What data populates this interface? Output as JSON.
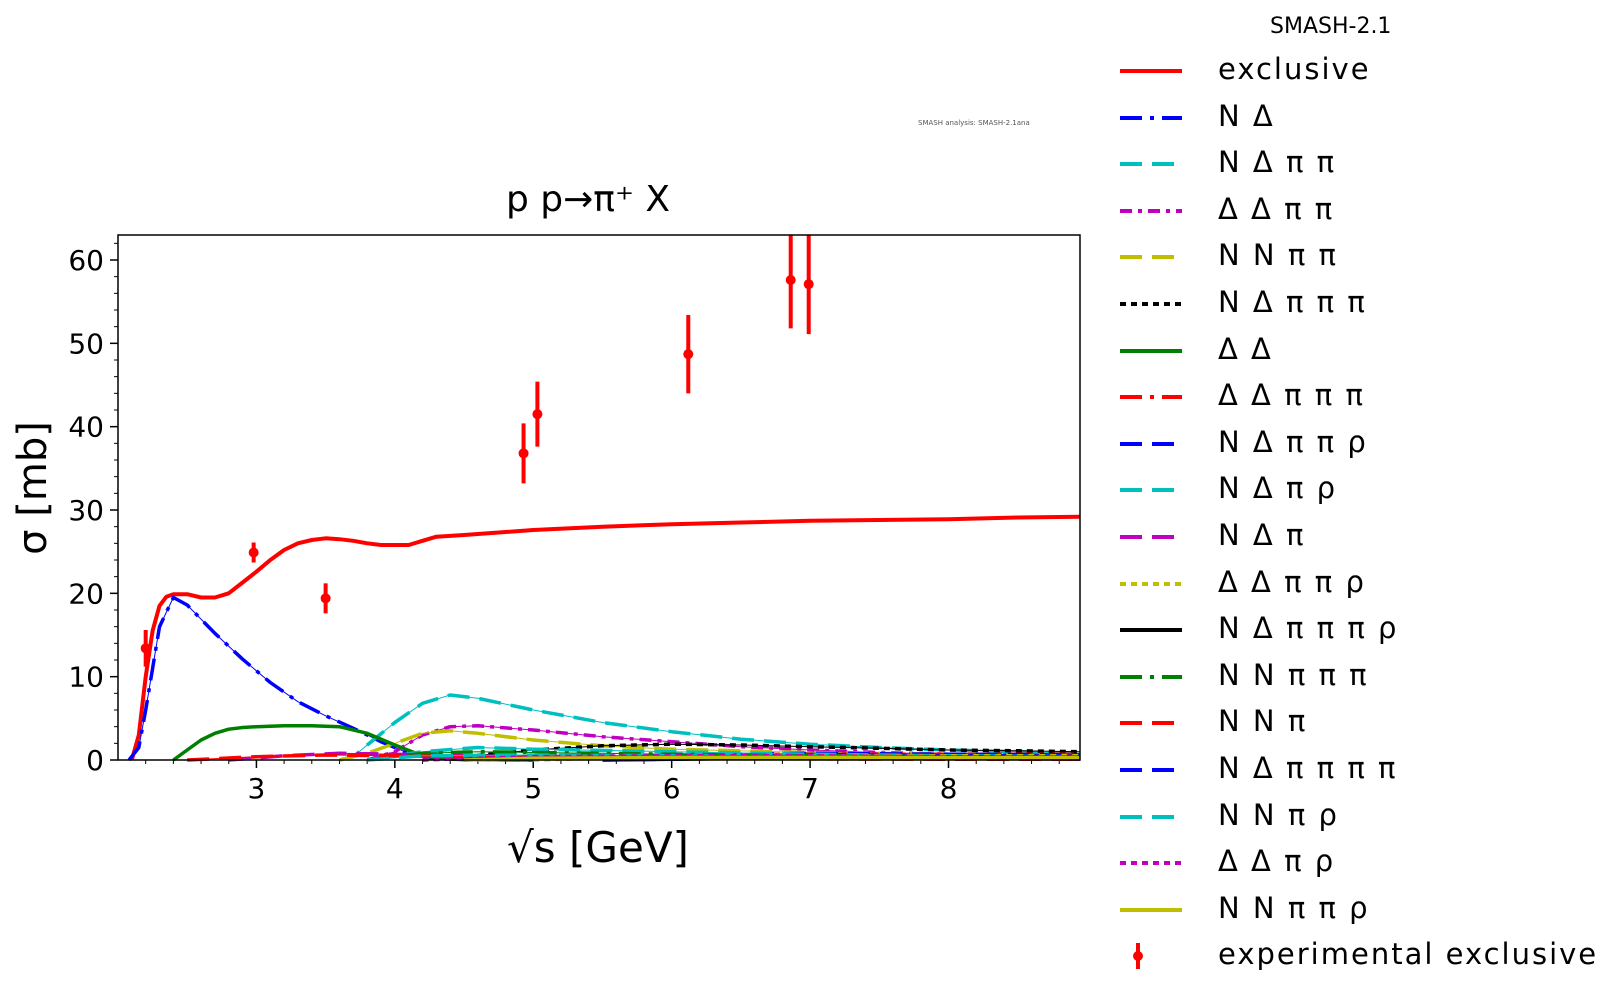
{
  "legend_title": "SMASH-2.1",
  "analysis_note": "SMASH analysis: SMASH-2.1ana",
  "chart_data": {
    "type": "line",
    "title": "p p→π⁺ X",
    "xlabel": "√s [GeV]",
    "ylabel": "σ [mb]",
    "xlim": [
      2.0,
      8.95
    ],
    "ylim": [
      0,
      63
    ],
    "xticks": [
      3,
      4,
      5,
      6,
      7,
      8
    ],
    "yticks": [
      0,
      10,
      20,
      30,
      40,
      50,
      60
    ],
    "grid": false,
    "legend_position": "outside-right",
    "series": [
      {
        "name": "exclusive",
        "color": "#ff0000",
        "dash": "solid",
        "x": [
          2.1,
          2.15,
          2.2,
          2.25,
          2.3,
          2.35,
          2.4,
          2.5,
          2.6,
          2.7,
          2.8,
          2.9,
          3.0,
          3.1,
          3.2,
          3.3,
          3.4,
          3.5,
          3.6,
          3.7,
          3.8,
          3.9,
          4.0,
          4.1,
          4.2,
          4.3,
          4.5,
          4.75,
          5.0,
          5.5,
          6.0,
          6.5,
          7.0,
          7.5,
          8.0,
          8.5,
          8.95
        ],
        "y": [
          0,
          3,
          10,
          15.5,
          18.5,
          19.6,
          19.9,
          19.9,
          19.5,
          19.5,
          20,
          21.3,
          22.6,
          24,
          25.2,
          26,
          26.4,
          26.6,
          26.5,
          26.3,
          26,
          25.8,
          25.8,
          25.8,
          26.3,
          26.8,
          27,
          27.3,
          27.6,
          28,
          28.3,
          28.5,
          28.7,
          28.8,
          28.9,
          29.1,
          29.2
        ]
      },
      {
        "name": "N Δ",
        "color": "#0000ff",
        "dash": "long-dash-dot",
        "x": [
          2.08,
          2.15,
          2.2,
          2.3,
          2.4,
          2.5,
          2.7,
          2.9,
          3.1,
          3.3,
          3.5,
          3.7,
          3.9,
          4.1,
          4.3,
          4.5,
          5.0
        ],
        "y": [
          0,
          1.5,
          6,
          16,
          19.5,
          18.6,
          15.2,
          12.1,
          9.3,
          7,
          5.3,
          3.8,
          2.2,
          0.8,
          0.2,
          0.05,
          0
        ]
      },
      {
        "name": "N Δ π π",
        "color": "#00bfbf",
        "dash": "long-dash",
        "x": [
          3.6,
          3.7,
          3.8,
          4.0,
          4.2,
          4.4,
          4.6,
          5.0,
          5.5,
          6.0,
          6.5,
          7.0,
          7.5,
          8.0,
          8.5,
          8.95
        ],
        "y": [
          0,
          0.4,
          1.8,
          4.5,
          6.8,
          7.8,
          7.4,
          6,
          4.5,
          3.4,
          2.5,
          1.9,
          1.5,
          1.2,
          1.0,
          0.8
        ]
      },
      {
        "name": "Δ Δ π π",
        "color": "#bf00bf",
        "dash": "dash-dot",
        "x": [
          3.8,
          4.0,
          4.2,
          4.4,
          4.6,
          5.0,
          5.5,
          6.0,
          6.5,
          7.0,
          7.5,
          8.0,
          8.95
        ],
        "y": [
          0,
          1,
          3,
          4,
          4.1,
          3.6,
          2.8,
          2.2,
          1.6,
          1.2,
          0.9,
          0.7,
          0.5
        ]
      },
      {
        "name": "N N π π",
        "color": "#bfbf00",
        "dash": "long-dash",
        "x": [
          3.6,
          3.8,
          4.0,
          4.2,
          4.4,
          4.6,
          5.0,
          5.5,
          6.0,
          7.0,
          8.0,
          8.95
        ],
        "y": [
          0,
          0.8,
          2,
          3.2,
          3.5,
          3.2,
          2.4,
          1.7,
          1.3,
          0.9,
          0.7,
          0.5
        ]
      },
      {
        "name": "N Δ π π π",
        "color": "#000000",
        "dash": "short-dash",
        "x": [
          4.2,
          4.5,
          5.0,
          5.5,
          6.0,
          6.5,
          7.0,
          7.5,
          8.0,
          8.5,
          8.95
        ],
        "y": [
          0,
          0.4,
          1.2,
          1.7,
          1.9,
          1.8,
          1.6,
          1.4,
          1.2,
          1.1,
          1.0
        ]
      },
      {
        "name": "Δ Δ",
        "color": "#008000",
        "dash": "solid",
        "x": [
          2.4,
          2.5,
          2.6,
          2.7,
          2.8,
          2.9,
          3.0,
          3.2,
          3.4,
          3.6,
          3.8,
          4.0,
          4.2,
          4.4,
          5.0
        ],
        "y": [
          0,
          1.2,
          2.4,
          3.2,
          3.7,
          3.9,
          4.0,
          4.1,
          4.1,
          4.0,
          3.2,
          1.8,
          0.5,
          0.1,
          0
        ]
      },
      {
        "name": "Δ Δ π π π",
        "color": "#ff0000",
        "dash": "long-dash-dot",
        "x": [
          4.5,
          5.0,
          6.0,
          7.0,
          8.0,
          8.95
        ],
        "y": [
          0,
          0.2,
          0.6,
          0.7,
          0.7,
          0.7
        ]
      },
      {
        "name": "N Δ π π ρ",
        "color": "#0000ff",
        "dash": "long-dash",
        "x": [
          4.5,
          5.0,
          6.0,
          7.0,
          8.0,
          8.95
        ],
        "y": [
          0,
          0.3,
          0.6,
          0.8,
          0.7,
          0.6
        ]
      },
      {
        "name": "N Δ π ρ",
        "color": "#00bfbf",
        "dash": "long-dash",
        "x": [
          3.8,
          4.2,
          4.6,
          5.0,
          6.0,
          7.0,
          8.0,
          8.95
        ],
        "y": [
          0,
          1,
          1.5,
          1.3,
          1.0,
          0.7,
          0.5,
          0.4
        ]
      },
      {
        "name": "N Δ π",
        "color": "#bf00bf",
        "dash": "long-dash",
        "x": [
          2.8,
          3.2,
          3.6,
          4.0,
          4.5,
          5.0,
          6.0,
          7.0,
          8.0,
          8.95
        ],
        "y": [
          0,
          0.5,
          0.8,
          0.7,
          0.5,
          0.4,
          0.3,
          0.2,
          0.2,
          0.1
        ]
      },
      {
        "name": "Δ Δ π π ρ",
        "color": "#bfbf00",
        "dash": "short-dash",
        "x": [
          5.0,
          5.5,
          6.0,
          7.0,
          8.0,
          8.95
        ],
        "y": [
          0,
          0.2,
          0.4,
          0.5,
          0.5,
          0.5
        ]
      },
      {
        "name": "N Δ π π π ρ",
        "color": "#000000",
        "dash": "solid",
        "x": [
          5.5,
          6.0,
          7.0,
          8.0,
          8.95
        ],
        "y": [
          0,
          0.1,
          0.3,
          0.4,
          0.4
        ]
      },
      {
        "name": "N N π π π",
        "color": "#008000",
        "dash": "long-dash-dot",
        "x": [
          3.8,
          4.2,
          4.6,
          5.0,
          6.0,
          7.0,
          8.0,
          8.95
        ],
        "y": [
          0,
          0.8,
          1.0,
          0.9,
          0.7,
          0.5,
          0.4,
          0.3
        ]
      },
      {
        "name": "N N π",
        "color": "#ff0000",
        "dash": "long-dash",
        "x": [
          2.5,
          3.0,
          3.5,
          4.0,
          5.0,
          6.0,
          7.0,
          8.0,
          8.95
        ],
        "y": [
          0,
          0.4,
          0.6,
          0.5,
          0.3,
          0.2,
          0.15,
          0.1,
          0.1
        ]
      },
      {
        "name": "N Δ π π π π",
        "color": "#0000ff",
        "dash": "long-dash",
        "x": [
          5.5,
          6.0,
          7.0,
          8.0,
          8.95
        ],
        "y": [
          0,
          0.1,
          0.3,
          0.4,
          0.4
        ]
      },
      {
        "name": "N N π ρ",
        "color": "#00bfbf",
        "dash": "long-dash",
        "x": [
          3.8,
          4.2,
          5.0,
          6.0,
          7.0,
          8.0,
          8.95
        ],
        "y": [
          0,
          0.5,
          0.6,
          0.5,
          0.4,
          0.3,
          0.3
        ]
      },
      {
        "name": "Δ Δ π ρ",
        "color": "#bf00bf",
        "dash": "short-dash",
        "x": [
          4.2,
          5.0,
          6.0,
          7.0,
          8.0,
          8.95
        ],
        "y": [
          0,
          0.4,
          0.5,
          0.5,
          0.4,
          0.4
        ]
      },
      {
        "name": "N N π π ρ",
        "color": "#bfbf00",
        "dash": "solid",
        "x": [
          4.5,
          5.0,
          6.0,
          7.0,
          8.0,
          8.95
        ],
        "y": [
          0,
          0.2,
          0.3,
          0.3,
          0.3,
          0.3
        ]
      }
    ],
    "experimental": {
      "name": "experimental exclusive",
      "color": "#ff0000",
      "points": [
        {
          "x": 2.2,
          "y": 13.4,
          "err": 2.2
        },
        {
          "x": 2.98,
          "y": 24.9,
          "err": 1.2
        },
        {
          "x": 3.5,
          "y": 19.4,
          "err": 1.8
        },
        {
          "x": 4.93,
          "y": 36.8,
          "err": 3.6
        },
        {
          "x": 5.03,
          "y": 41.5,
          "err": 3.9
        },
        {
          "x": 6.12,
          "y": 48.7,
          "err": 4.7
        },
        {
          "x": 6.86,
          "y": 57.6,
          "err": 5.8
        },
        {
          "x": 6.99,
          "y": 57.1,
          "err": 6.0
        }
      ]
    }
  }
}
